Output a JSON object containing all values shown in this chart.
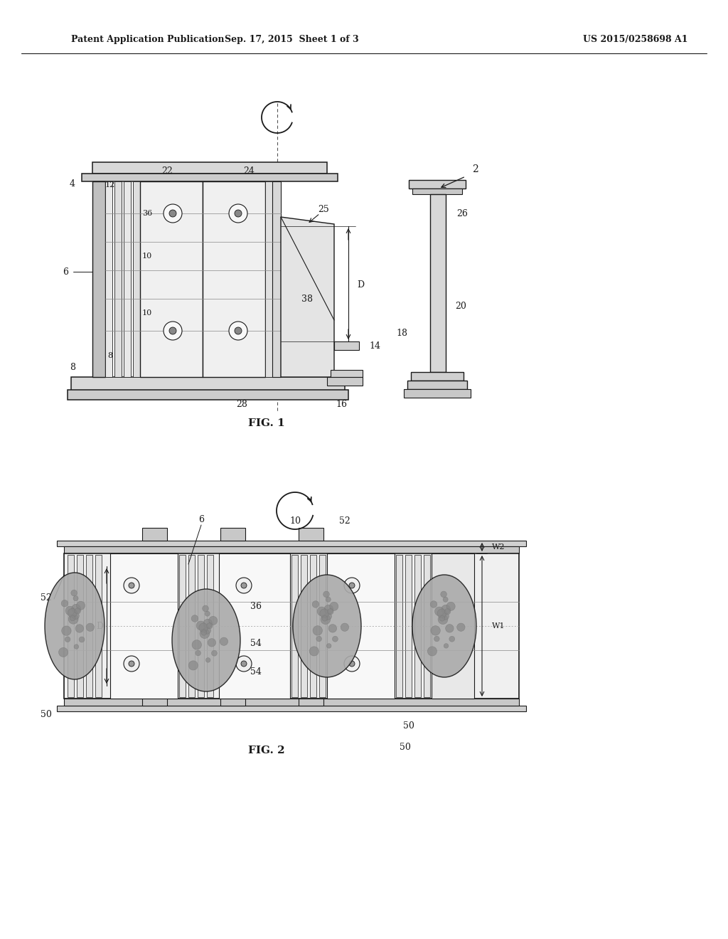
{
  "bg_color": "#ffffff",
  "line_color": "#1a1a1a",
  "header_left": "Patent Application Publication",
  "header_center": "Sep. 17, 2015  Sheet 1 of 3",
  "header_right": "US 2015/0258698 A1",
  "fig1_label": "FIG. 1",
  "fig2_label": "FIG. 2"
}
